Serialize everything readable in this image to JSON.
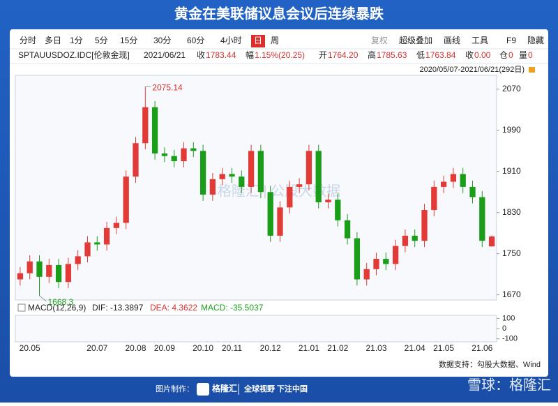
{
  "banner": {
    "title": "黄金在美联储议息会议后连续暴跌"
  },
  "toolbar": {
    "left": [
      "分时",
      "多日",
      "1分",
      "5分",
      "15分",
      "30分",
      "60分",
      "4小时",
      "日",
      "周"
    ],
    "selected": "日",
    "right": [
      "复权",
      "超级叠加",
      "画线",
      "工具",
      "F9",
      "隐藏"
    ]
  },
  "quote": {
    "symbol": "SPTAUUSDOZ.IDC[伦敦金现]",
    "date": "2021/06/21",
    "items": [
      {
        "label": "收",
        "value": "1783.44"
      },
      {
        "label": "幅",
        "value": "1.15%(20.25)"
      },
      {
        "label": "开",
        "value": "1764.20"
      },
      {
        "label": "高",
        "value": "1785.63"
      },
      {
        "label": "低",
        "value": "1763.84"
      },
      {
        "label": "收",
        "value": "0.00"
      },
      {
        "label": "仓",
        "value": "0"
      },
      {
        "label": "量",
        "value": "0"
      }
    ],
    "range": "2020/05/07-2021/06/21(292日)"
  },
  "chart_data": {
    "type": "candlestick",
    "categories": [
      null,
      "20.05",
      null,
      null,
      null,
      null,
      null,
      null,
      "20.07",
      null,
      null,
      null,
      "20.08",
      null,
      null,
      "20.09",
      null,
      null,
      null,
      "20.10",
      null,
      null,
      "20.11",
      null,
      null,
      null,
      "20.12",
      null,
      null,
      null,
      "21.01",
      null,
      null,
      "21.02",
      null,
      null,
      null,
      "21.03",
      null,
      null,
      null,
      "21.04",
      null,
      null,
      "21.05",
      null,
      null,
      null,
      "21.06",
      null
    ],
    "open": [
      1700,
      1712,
      1735,
      1705,
      1728,
      1695,
      1730,
      1745,
      1772,
      1768,
      1800,
      1810,
      1900,
      1965,
      2035,
      1945,
      1940,
      1930,
      1955,
      1950,
      1865,
      1895,
      1905,
      1900,
      1880,
      1950,
      1870,
      1785,
      1840,
      1880,
      1885,
      1950,
      1850,
      1855,
      1815,
      1780,
      1700,
      1720,
      1740,
      1730,
      1765,
      1785,
      1775,
      1835,
      1880,
      1890,
      1905,
      1880,
      1860,
      1764.2
    ],
    "high": [
      1724,
      1747,
      1747,
      1740,
      1740,
      1742,
      1757,
      1784,
      1784,
      1812,
      1822,
      1912,
      1977,
      2075.14,
      2047,
      1957,
      1952,
      1967,
      1967,
      1962,
      1907,
      1917,
      1917,
      1912,
      1962,
      1962,
      1882,
      1852,
      1892,
      1897,
      1962,
      1962,
      1867,
      1867,
      1827,
      1792,
      1732,
      1752,
      1752,
      1777,
      1797,
      1797,
      1847,
      1892,
      1902,
      1917,
      1917,
      1892,
      1872,
      1785.63
    ],
    "low": [
      1688,
      1700,
      1668.3,
      1693,
      1683,
      1683,
      1718,
      1733,
      1756,
      1756,
      1788,
      1798,
      1888,
      1953,
      1933,
      1928,
      1918,
      1918,
      1938,
      1853,
      1853,
      1883,
      1888,
      1868,
      1868,
      1858,
      1773,
      1773,
      1828,
      1868,
      1873,
      1838,
      1838,
      1803,
      1768,
      1688,
      1688,
      1708,
      1718,
      1718,
      1753,
      1763,
      1763,
      1823,
      1868,
      1878,
      1868,
      1848,
      1763,
      1763.84
    ],
    "close": [
      1712,
      1735,
      1705,
      1728,
      1695,
      1730,
      1745,
      1772,
      1768,
      1800,
      1810,
      1900,
      1965,
      2035,
      1945,
      1940,
      1930,
      1955,
      1950,
      1865,
      1895,
      1905,
      1900,
      1880,
      1950,
      1870,
      1785,
      1840,
      1880,
      1885,
      1950,
      1850,
      1855,
      1815,
      1780,
      1700,
      1720,
      1740,
      1730,
      1765,
      1785,
      1775,
      1835,
      1880,
      1890,
      1905,
      1880,
      1860,
      1775,
      1783.44
    ],
    "up_color": "#e23a36",
    "down_color": "#1a9e1a",
    "ylim": [
      1660,
      2097
    ],
    "yticks": [
      1670,
      1750,
      1830,
      1910,
      1990,
      2070
    ],
    "annotations": {
      "max_index": 13,
      "min_index": 2
    },
    "macd": {
      "title": "MACD(12,26,9)",
      "dif": "DIF: -13.3897",
      "dea": "DEA: 4.3622",
      "macd": "MACD: -35.5037",
      "ylim": [
        -130,
        130
      ],
      "yticks": [
        -100,
        0,
        100
      ]
    },
    "watermark": "格隆汇 | 公股大数据"
  },
  "source": "数据支持：勾股大数据、Wind",
  "footer": {
    "made_by": "图片制作：",
    "brand": "格隆汇",
    "slogan": "全球视野 下注中国",
    "xueqiu": "雪球：格隆汇"
  }
}
